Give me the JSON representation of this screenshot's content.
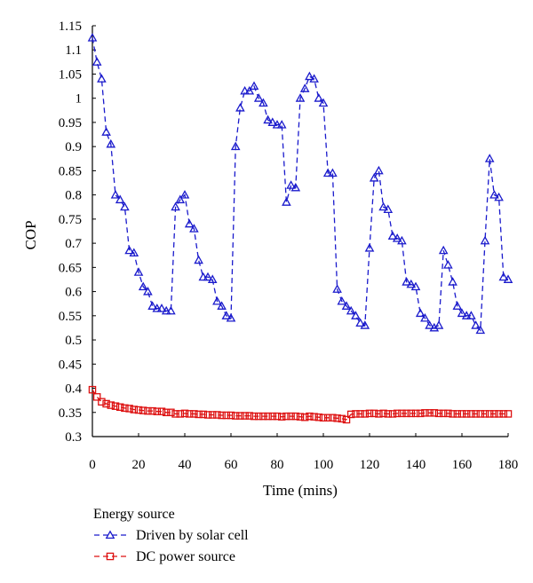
{
  "chart_data": {
    "type": "line",
    "title": "",
    "xlabel": "Time (mins)",
    "ylabel": "COP",
    "xlim": [
      0,
      180
    ],
    "ylim": [
      0.3,
      1.15
    ],
    "xticks": [
      0,
      20,
      40,
      60,
      80,
      100,
      120,
      140,
      160,
      180
    ],
    "yticks": [
      "0.3",
      "0.35",
      "0.4",
      "0.45",
      "0.5",
      "0.55",
      "0.6",
      "0.65",
      "0.7",
      "0.75",
      "0.8",
      "0.85",
      "0.9",
      "0.95",
      "1",
      "1.05",
      "1.1",
      "1.15"
    ],
    "grid": false,
    "legend": {
      "title": "Energy source",
      "position": "bottom-left"
    },
    "series": [
      {
        "name": "Driven by solar cell",
        "color": "#1a1acc",
        "marker": "triangle",
        "x": [
          0,
          2,
          4,
          6,
          8,
          10,
          12,
          14,
          16,
          18,
          20,
          22,
          24,
          26,
          28,
          30,
          32,
          34,
          36,
          38,
          40,
          42,
          44,
          46,
          48,
          50,
          52,
          54,
          56,
          58,
          60,
          62,
          64,
          66,
          68,
          70,
          72,
          74,
          76,
          78,
          80,
          82,
          84,
          86,
          88,
          90,
          92,
          94,
          96,
          98,
          100,
          102,
          104,
          106,
          108,
          110,
          112,
          114,
          116,
          118,
          120,
          122,
          124,
          126,
          128,
          130,
          132,
          134,
          136,
          138,
          140,
          142,
          144,
          146,
          148,
          150,
          152,
          154,
          156,
          158,
          160,
          162,
          164,
          166,
          168,
          170,
          172,
          174,
          176,
          178,
          180
        ],
        "y": [
          1.125,
          1.075,
          1.04,
          0.93,
          0.905,
          0.8,
          0.79,
          0.775,
          0.685,
          0.68,
          0.64,
          0.61,
          0.6,
          0.57,
          0.565,
          0.565,
          0.56,
          0.56,
          0.775,
          0.79,
          0.8,
          0.74,
          0.73,
          0.665,
          0.63,
          0.63,
          0.625,
          0.58,
          0.57,
          0.55,
          0.545,
          0.9,
          0.98,
          1.015,
          1.015,
          1.025,
          1.0,
          0.99,
          0.955,
          0.95,
          0.945,
          0.945,
          0.785,
          0.82,
          0.815,
          1.0,
          1.02,
          1.045,
          1.04,
          1.0,
          0.99,
          0.845,
          0.845,
          0.605,
          0.58,
          0.57,
          0.56,
          0.55,
          0.535,
          0.53,
          0.69,
          0.835,
          0.85,
          0.775,
          0.77,
          0.715,
          0.71,
          0.705,
          0.62,
          0.615,
          0.61,
          0.555,
          0.545,
          0.53,
          0.525,
          0.53,
          0.685,
          0.655,
          0.62,
          0.57,
          0.555,
          0.55,
          0.55,
          0.53,
          0.52,
          0.705,
          0.875,
          0.8,
          0.795,
          0.63,
          0.625
        ]
      },
      {
        "name": "DC power source",
        "color": "#dd1111",
        "marker": "square",
        "x": [
          0,
          2,
          4,
          6,
          8,
          10,
          12,
          14,
          16,
          18,
          20,
          22,
          24,
          26,
          28,
          30,
          32,
          34,
          36,
          38,
          40,
          42,
          44,
          46,
          48,
          50,
          52,
          54,
          56,
          58,
          60,
          62,
          64,
          66,
          68,
          70,
          72,
          74,
          76,
          78,
          80,
          82,
          84,
          86,
          88,
          90,
          92,
          94,
          96,
          98,
          100,
          102,
          104,
          106,
          108,
          110,
          112,
          114,
          116,
          118,
          120,
          122,
          124,
          126,
          128,
          130,
          132,
          134,
          136,
          138,
          140,
          142,
          144,
          146,
          148,
          150,
          152,
          154,
          156,
          158,
          160,
          162,
          164,
          166,
          168,
          170,
          172,
          174,
          176,
          178,
          180
        ],
        "y": [
          0.397,
          0.382,
          0.372,
          0.368,
          0.365,
          0.363,
          0.361,
          0.359,
          0.358,
          0.356,
          0.355,
          0.354,
          0.353,
          0.353,
          0.352,
          0.352,
          0.35,
          0.35,
          0.347,
          0.347,
          0.348,
          0.347,
          0.347,
          0.346,
          0.346,
          0.345,
          0.345,
          0.345,
          0.344,
          0.344,
          0.344,
          0.343,
          0.343,
          0.343,
          0.343,
          0.342,
          0.342,
          0.342,
          0.342,
          0.342,
          0.342,
          0.341,
          0.342,
          0.342,
          0.342,
          0.341,
          0.34,
          0.342,
          0.341,
          0.34,
          0.339,
          0.339,
          0.339,
          0.338,
          0.337,
          0.335,
          0.346,
          0.347,
          0.347,
          0.347,
          0.348,
          0.348,
          0.347,
          0.348,
          0.347,
          0.347,
          0.348,
          0.348,
          0.348,
          0.348,
          0.348,
          0.348,
          0.349,
          0.349,
          0.349,
          0.348,
          0.348,
          0.348,
          0.347,
          0.347,
          0.347,
          0.347,
          0.347,
          0.347,
          0.347,
          0.347,
          0.347,
          0.347,
          0.347,
          0.347,
          0.347
        ]
      }
    ]
  }
}
